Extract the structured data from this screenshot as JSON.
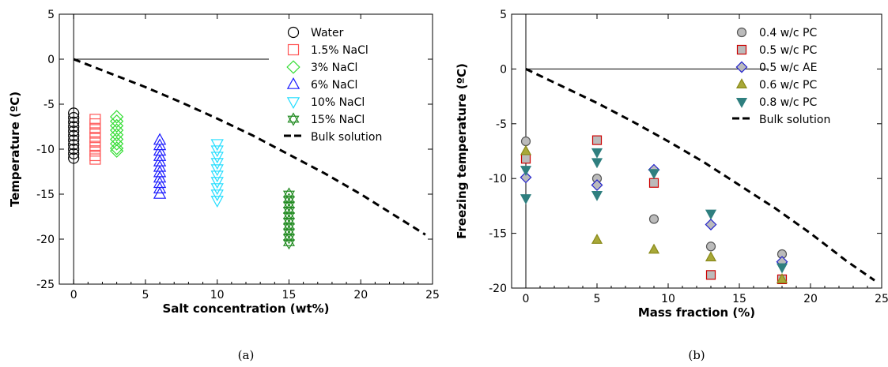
{
  "chart_data": [
    {
      "id": "a",
      "type": "scatter",
      "caption": "(a)",
      "xlabel": "Salt concentration (wt%)",
      "ylabel": "Temperature (ºC)",
      "xlim": [
        -1,
        25
      ],
      "ylim": [
        -25,
        5
      ],
      "xticks": [
        0,
        5,
        10,
        15,
        20,
        25
      ],
      "yticks": [
        5,
        0,
        -5,
        -10,
        -15,
        -20,
        -25
      ],
      "grid": false,
      "legend_position": "top-right",
      "series": [
        {
          "name": "Water",
          "marker": "circle",
          "color": "#000000",
          "x": 0,
          "values": [
            -6.0,
            -6.5,
            -7.0,
            -7.5,
            -8.0,
            -8.5,
            -9.0,
            -9.5,
            -10.0,
            -10.5,
            -11.0
          ]
        },
        {
          "name": "1.5% NaCl",
          "marker": "square",
          "color": "#ff5555",
          "x": 1.5,
          "values": [
            -6.7,
            -7.2,
            -7.7,
            -8.2,
            -8.7,
            -9.2,
            -9.7,
            -10.2,
            -10.7,
            -11.1
          ]
        },
        {
          "name": "3% NaCl",
          "marker": "diamond",
          "color": "#33dd33",
          "x": 3,
          "values": [
            -6.4,
            -6.9,
            -7.4,
            -7.9,
            -8.4,
            -8.9,
            -9.4,
            -9.9,
            -10.2
          ]
        },
        {
          "name": "6% NaCl",
          "marker": "triangle-up",
          "color": "#1a1aff",
          "x": 6,
          "values": [
            -9.0,
            -9.6,
            -10.2,
            -10.8,
            -11.4,
            -12.0,
            -12.6,
            -13.2,
            -13.8,
            -14.4,
            -15.0
          ]
        },
        {
          "name": "10% NaCl",
          "marker": "triangle-down",
          "color": "#22ddff",
          "x": 10,
          "values": [
            -9.4,
            -10.1,
            -10.8,
            -11.5,
            -12.2,
            -12.9,
            -13.6,
            -14.3,
            -15.0,
            -15.7
          ]
        },
        {
          "name": "15% NaCl",
          "marker": "star",
          "color": "#228b22",
          "x": 15,
          "values": [
            -15.0,
            -15.6,
            -16.2,
            -16.8,
            -17.4,
            -18.0,
            -18.6,
            -19.2,
            -19.8,
            -20.4
          ]
        }
      ],
      "line": {
        "name": "Bulk solution",
        "style": "dashed",
        "color": "#000000",
        "x": [
          0,
          2.5,
          5,
          7.5,
          10,
          12.5,
          15,
          17.5,
          20,
          22.5,
          24.5
        ],
        "y": [
          0,
          -1.55,
          -3.1,
          -4.8,
          -6.6,
          -8.5,
          -10.6,
          -12.7,
          -15.0,
          -17.5,
          -19.5
        ]
      }
    },
    {
      "id": "b",
      "type": "scatter",
      "caption": "(b)",
      "xlabel": "Mass fraction (%)",
      "ylabel": "Freezing temperature (ºC)",
      "xlim": [
        -1,
        25
      ],
      "ylim": [
        -20,
        5
      ],
      "xticks": [
        0,
        5,
        10,
        15,
        20,
        25
      ],
      "yticks": [
        5,
        0,
        -5,
        -10,
        -15,
        -20
      ],
      "grid": false,
      "legend_position": "top-right",
      "series": [
        {
          "name": "0.4 w/c PC",
          "marker": "circle",
          "color": "#555555",
          "fill": "#bbbbbb",
          "x": [
            0,
            5,
            9,
            13,
            18
          ],
          "values": [
            -6.6,
            -10.0,
            -13.7,
            -16.2,
            -16.9
          ]
        },
        {
          "name": "0.5 w/c PC",
          "marker": "square",
          "color": "#cc0000",
          "fill": "#bbbbbb",
          "x": [
            0,
            5,
            9,
            13,
            18
          ],
          "values": [
            -8.2,
            -6.5,
            -10.4,
            -18.8,
            -19.2
          ]
        },
        {
          "name": "0.5 w/c AE",
          "marker": "diamond",
          "color": "#2222cc",
          "fill": "#bbbbbb",
          "x": [
            0,
            5,
            9,
            13,
            18
          ],
          "values": [
            -9.9,
            -10.6,
            -9.2,
            -14.2,
            -17.6
          ]
        },
        {
          "name": "0.6 w/c PC",
          "marker": "triangle-up",
          "color": "#8a8a1a",
          "fill": "#a8a838",
          "x": [
            0,
            5,
            9,
            13,
            18
          ],
          "values": [
            -7.5,
            -15.6,
            -16.5,
            -17.2,
            -19.2
          ]
        },
        {
          "name": "0.8 w/c PC",
          "marker": "triangle-down",
          "color": "#2f7f7f",
          "fill": "#2f7f7f",
          "x": [
            0,
            0,
            5,
            5,
            5,
            9,
            13,
            18
          ],
          "values": [
            -9.2,
            -11.8,
            -7.6,
            -8.5,
            -11.5,
            -9.5,
            -13.2,
            -18.1
          ]
        }
      ],
      "line": {
        "name": "Bulk solution",
        "style": "dashed",
        "color": "#000000",
        "x": [
          0,
          2.5,
          5,
          7.5,
          10,
          12.5,
          15,
          17.5,
          20,
          22.5,
          24.5
        ],
        "y": [
          0,
          -1.55,
          -3.1,
          -4.8,
          -6.6,
          -8.5,
          -10.6,
          -12.7,
          -15.0,
          -17.5,
          -19.3
        ]
      }
    }
  ]
}
